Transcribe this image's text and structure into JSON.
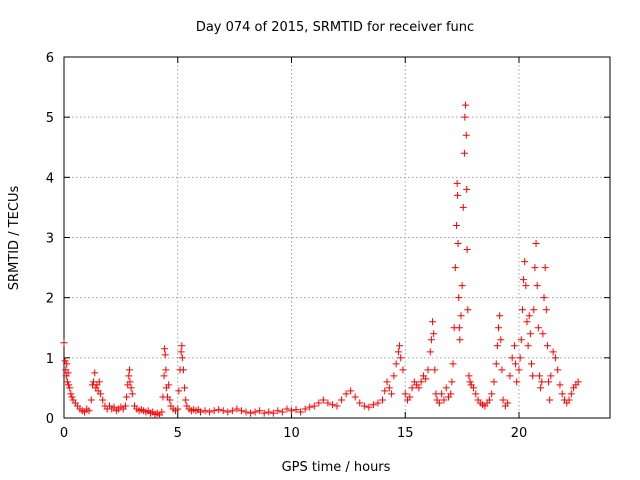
{
  "chart_data": {
    "type": "scatter",
    "title": "Day 074 of 2015, SRMTID for receiver func",
    "xlabel": "GPS time / hours",
    "ylabel": "SRMTID / TECUs",
    "xlim": [
      0,
      24
    ],
    "ylim": [
      0,
      6
    ],
    "xticks": [
      0,
      5,
      10,
      15,
      20
    ],
    "yticks": [
      0,
      1,
      2,
      3,
      4,
      5,
      6
    ],
    "marker": "+",
    "color": "#ff0000",
    "grid": true,
    "series": [
      {
        "name": "SRMTID",
        "points": [
          [
            0.0,
            1.25
          ],
          [
            0.05,
            0.95
          ],
          [
            0.08,
            0.8
          ],
          [
            0.1,
            0.7
          ],
          [
            0.12,
            0.9
          ],
          [
            0.15,
            0.6
          ],
          [
            0.18,
            0.75
          ],
          [
            0.2,
            0.55
          ],
          [
            0.25,
            0.5
          ],
          [
            0.3,
            0.4
          ],
          [
            0.35,
            0.35
          ],
          [
            0.4,
            0.3
          ],
          [
            0.5,
            0.25
          ],
          [
            0.6,
            0.2
          ],
          [
            0.7,
            0.15
          ],
          [
            0.8,
            0.12
          ],
          [
            0.9,
            0.1
          ],
          [
            1.0,
            0.15
          ],
          [
            1.1,
            0.12
          ],
          [
            1.2,
            0.3
          ],
          [
            1.25,
            0.55
          ],
          [
            1.3,
            0.6
          ],
          [
            1.35,
            0.75
          ],
          [
            1.4,
            0.5
          ],
          [
            1.45,
            0.55
          ],
          [
            1.5,
            0.45
          ],
          [
            1.55,
            0.6
          ],
          [
            1.6,
            0.4
          ],
          [
            1.7,
            0.3
          ],
          [
            1.8,
            0.2
          ],
          [
            1.9,
            0.15
          ],
          [
            2.0,
            0.2
          ],
          [
            2.1,
            0.15
          ],
          [
            2.2,
            0.18
          ],
          [
            2.3,
            0.12
          ],
          [
            2.4,
            0.15
          ],
          [
            2.5,
            0.18
          ],
          [
            2.6,
            0.15
          ],
          [
            2.7,
            0.2
          ],
          [
            2.75,
            0.35
          ],
          [
            2.8,
            0.55
          ],
          [
            2.85,
            0.7
          ],
          [
            2.88,
            0.8
          ],
          [
            2.9,
            0.6
          ],
          [
            2.95,
            0.5
          ],
          [
            3.0,
            0.4
          ],
          [
            3.1,
            0.2
          ],
          [
            3.2,
            0.15
          ],
          [
            3.3,
            0.12
          ],
          [
            3.4,
            0.14
          ],
          [
            3.5,
            0.12
          ],
          [
            3.6,
            0.1
          ],
          [
            3.7,
            0.12
          ],
          [
            3.8,
            0.08
          ],
          [
            3.9,
            0.1
          ],
          [
            4.0,
            0.06
          ],
          [
            4.1,
            0.08
          ],
          [
            4.2,
            0.05
          ],
          [
            4.3,
            0.1
          ],
          [
            4.35,
            0.35
          ],
          [
            4.4,
            0.7
          ],
          [
            4.42,
            1.15
          ],
          [
            4.45,
            1.05
          ],
          [
            4.48,
            0.8
          ],
          [
            4.5,
            0.5
          ],
          [
            4.55,
            0.35
          ],
          [
            4.6,
            0.55
          ],
          [
            4.65,
            0.3
          ],
          [
            4.7,
            0.2
          ],
          [
            4.8,
            0.15
          ],
          [
            4.9,
            0.12
          ],
          [
            5.0,
            0.15
          ],
          [
            5.05,
            0.45
          ],
          [
            5.1,
            0.8
          ],
          [
            5.15,
            1.1
          ],
          [
            5.18,
            1.2
          ],
          [
            5.2,
            1.0
          ],
          [
            5.25,
            0.8
          ],
          [
            5.3,
            0.5
          ],
          [
            5.35,
            0.3
          ],
          [
            5.4,
            0.2
          ],
          [
            5.5,
            0.15
          ],
          [
            5.6,
            0.12
          ],
          [
            5.7,
            0.14
          ],
          [
            5.8,
            0.12
          ],
          [
            5.9,
            0.14
          ],
          [
            6.0,
            0.1
          ],
          [
            6.2,
            0.12
          ],
          [
            6.4,
            0.1
          ],
          [
            6.6,
            0.12
          ],
          [
            6.8,
            0.14
          ],
          [
            7.0,
            0.12
          ],
          [
            7.2,
            0.1
          ],
          [
            7.4,
            0.12
          ],
          [
            7.6,
            0.15
          ],
          [
            7.8,
            0.12
          ],
          [
            8.0,
            0.1
          ],
          [
            8.2,
            0.08
          ],
          [
            8.4,
            0.1
          ],
          [
            8.6,
            0.12
          ],
          [
            8.8,
            0.08
          ],
          [
            9.0,
            0.1
          ],
          [
            9.2,
            0.08
          ],
          [
            9.4,
            0.12
          ],
          [
            9.6,
            0.1
          ],
          [
            9.8,
            0.15
          ],
          [
            10.0,
            0.12
          ],
          [
            10.2,
            0.14
          ],
          [
            10.4,
            0.1
          ],
          [
            10.6,
            0.15
          ],
          [
            10.8,
            0.18
          ],
          [
            11.0,
            0.2
          ],
          [
            11.2,
            0.25
          ],
          [
            11.4,
            0.3
          ],
          [
            11.6,
            0.25
          ],
          [
            11.8,
            0.22
          ],
          [
            12.0,
            0.2
          ],
          [
            12.2,
            0.3
          ],
          [
            12.4,
            0.4
          ],
          [
            12.6,
            0.45
          ],
          [
            12.8,
            0.35
          ],
          [
            13.0,
            0.25
          ],
          [
            13.2,
            0.2
          ],
          [
            13.4,
            0.18
          ],
          [
            13.6,
            0.22
          ],
          [
            13.8,
            0.25
          ],
          [
            14.0,
            0.3
          ],
          [
            14.1,
            0.45
          ],
          [
            14.2,
            0.6
          ],
          [
            14.3,
            0.5
          ],
          [
            14.4,
            0.4
          ],
          [
            14.5,
            0.7
          ],
          [
            14.6,
            0.9
          ],
          [
            14.7,
            1.1
          ],
          [
            14.75,
            1.2
          ],
          [
            14.8,
            1.0
          ],
          [
            14.9,
            0.8
          ],
          [
            15.0,
            0.4
          ],
          [
            15.1,
            0.3
          ],
          [
            15.2,
            0.35
          ],
          [
            15.3,
            0.5
          ],
          [
            15.4,
            0.6
          ],
          [
            15.5,
            0.55
          ],
          [
            15.6,
            0.5
          ],
          [
            15.7,
            0.6
          ],
          [
            15.8,
            0.7
          ],
          [
            15.9,
            0.65
          ],
          [
            16.0,
            0.8
          ],
          [
            16.1,
            1.1
          ],
          [
            16.15,
            1.3
          ],
          [
            16.2,
            1.6
          ],
          [
            16.25,
            1.4
          ],
          [
            16.3,
            0.8
          ],
          [
            16.35,
            0.4
          ],
          [
            16.4,
            0.3
          ],
          [
            16.5,
            0.25
          ],
          [
            16.6,
            0.4
          ],
          [
            16.7,
            0.3
          ],
          [
            16.8,
            0.5
          ],
          [
            16.9,
            0.35
          ],
          [
            17.0,
            0.4
          ],
          [
            17.05,
            0.6
          ],
          [
            17.1,
            0.9
          ],
          [
            17.15,
            1.5
          ],
          [
            17.2,
            2.5
          ],
          [
            17.25,
            3.2
          ],
          [
            17.28,
            3.9
          ],
          [
            17.3,
            3.7
          ],
          [
            17.32,
            2.9
          ],
          [
            17.35,
            2.0
          ],
          [
            17.38,
            1.5
          ],
          [
            17.4,
            1.3
          ],
          [
            17.45,
            1.7
          ],
          [
            17.5,
            2.2
          ],
          [
            17.55,
            3.5
          ],
          [
            17.6,
            4.4
          ],
          [
            17.62,
            5.0
          ],
          [
            17.65,
            5.2
          ],
          [
            17.68,
            4.7
          ],
          [
            17.7,
            3.8
          ],
          [
            17.72,
            2.8
          ],
          [
            17.75,
            1.8
          ],
          [
            17.8,
            0.7
          ],
          [
            17.85,
            0.6
          ],
          [
            17.9,
            0.55
          ],
          [
            18.0,
            0.5
          ],
          [
            18.1,
            0.4
          ],
          [
            18.2,
            0.3
          ],
          [
            18.3,
            0.25
          ],
          [
            18.4,
            0.22
          ],
          [
            18.5,
            0.2
          ],
          [
            18.6,
            0.25
          ],
          [
            18.7,
            0.3
          ],
          [
            18.8,
            0.4
          ],
          [
            18.9,
            0.6
          ],
          [
            19.0,
            0.9
          ],
          [
            19.05,
            1.2
          ],
          [
            19.1,
            1.5
          ],
          [
            19.15,
            1.7
          ],
          [
            19.2,
            1.3
          ],
          [
            19.25,
            0.8
          ],
          [
            19.3,
            0.3
          ],
          [
            19.4,
            0.2
          ],
          [
            19.5,
            0.25
          ],
          [
            19.6,
            0.7
          ],
          [
            19.7,
            1.0
          ],
          [
            19.8,
            1.2
          ],
          [
            19.85,
            0.9
          ],
          [
            19.9,
            0.6
          ],
          [
            20.0,
            0.8
          ],
          [
            20.05,
            1.0
          ],
          [
            20.1,
            1.3
          ],
          [
            20.15,
            1.8
          ],
          [
            20.2,
            2.3
          ],
          [
            20.25,
            2.6
          ],
          [
            20.3,
            2.2
          ],
          [
            20.35,
            1.6
          ],
          [
            20.4,
            1.2
          ],
          [
            20.45,
            1.7
          ],
          [
            20.5,
            1.4
          ],
          [
            20.55,
            0.9
          ],
          [
            20.6,
            0.7
          ],
          [
            20.65,
            1.8
          ],
          [
            20.7,
            2.5
          ],
          [
            20.75,
            2.9
          ],
          [
            20.8,
            2.2
          ],
          [
            20.85,
            1.5
          ],
          [
            20.9,
            0.7
          ],
          [
            20.95,
            0.5
          ],
          [
            21.0,
            0.6
          ],
          [
            21.05,
            1.4
          ],
          [
            21.1,
            2.0
          ],
          [
            21.15,
            2.5
          ],
          [
            21.2,
            1.8
          ],
          [
            21.25,
            1.2
          ],
          [
            21.3,
            0.6
          ],
          [
            21.35,
            0.3
          ],
          [
            21.4,
            0.7
          ],
          [
            21.5,
            1.1
          ],
          [
            21.6,
            1.0
          ],
          [
            21.7,
            0.8
          ],
          [
            21.8,
            0.55
          ],
          [
            21.9,
            0.4
          ],
          [
            22.0,
            0.3
          ],
          [
            22.1,
            0.25
          ],
          [
            22.2,
            0.3
          ],
          [
            22.3,
            0.4
          ],
          [
            22.4,
            0.5
          ],
          [
            22.5,
            0.55
          ],
          [
            22.6,
            0.6
          ]
        ]
      }
    ]
  }
}
